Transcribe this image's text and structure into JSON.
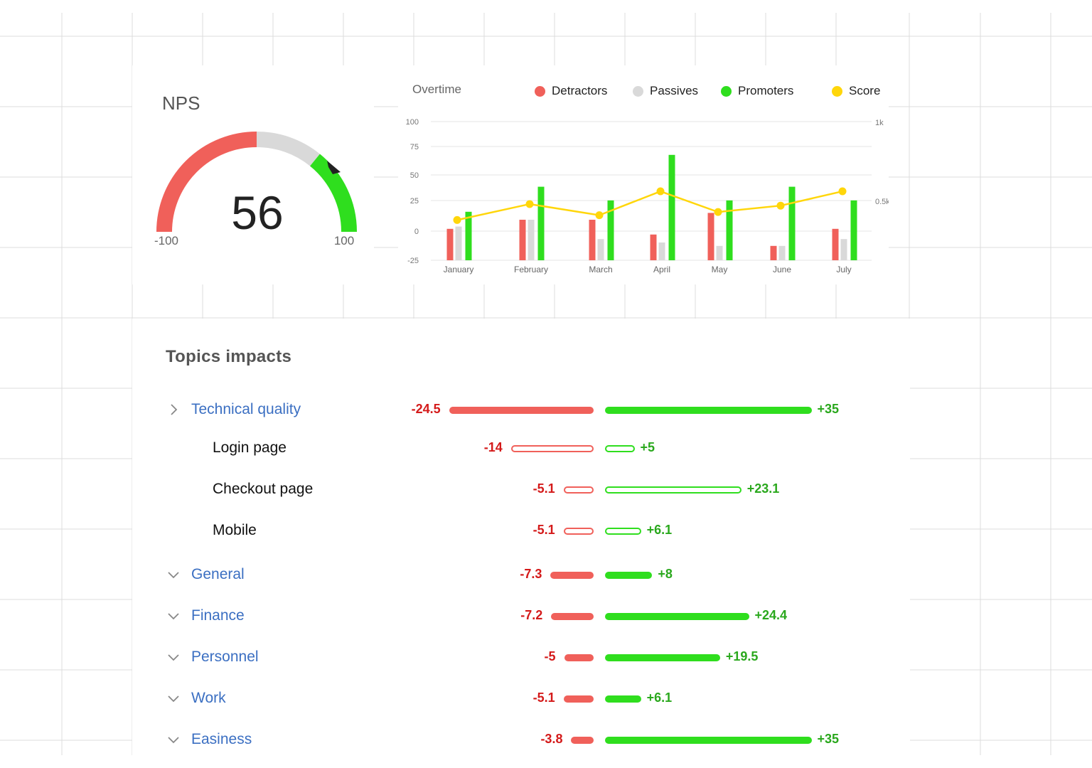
{
  "colors": {
    "detractors": "#f0605a",
    "passives": "#d9d9d9",
    "promoters": "#2fde1e",
    "score": "#ffd60a",
    "link_blue": "#3b6fc2",
    "negative_text": "#d41a1a",
    "positive_text": "#2aa81d"
  },
  "nps": {
    "title": "NPS",
    "score": "56",
    "min_label": "-100",
    "max_label": "100"
  },
  "overtime": {
    "title": "Overtime",
    "legend": [
      {
        "label": "Detractors",
        "color": "#f0605a"
      },
      {
        "label": "Passives",
        "color": "#d9d9d9"
      },
      {
        "label": "Promoters",
        "color": "#2fde1e"
      },
      {
        "label": "Score",
        "color": "#ffd60a"
      }
    ]
  },
  "chart_data": {
    "type": "bar",
    "categories": [
      "January",
      "February",
      "March",
      "April",
      "May",
      "June",
      "July"
    ],
    "y_ticks": [
      "100",
      "75",
      "50",
      "25",
      "0",
      "-25"
    ],
    "ylim": [
      -25,
      100
    ],
    "y2_ticks": [
      "1k",
      "0.5k"
    ],
    "y2lim": [
      0,
      1000
    ],
    "grid": true,
    "series": [
      {
        "name": "Detractors",
        "values": [
          2,
          10,
          10,
          -3,
          16,
          -13,
          2
        ]
      },
      {
        "name": "Passives",
        "values": [
          4,
          10,
          -7,
          -10,
          -13,
          -13,
          -7
        ]
      },
      {
        "name": "Promoters",
        "values": [
          17,
          39,
          27,
          67,
          27,
          39,
          27
        ]
      },
      {
        "name": "Score",
        "axis": "secondary",
        "values": [
          360,
          460,
          390,
          540,
          410,
          450,
          540
        ]
      }
    ]
  },
  "topics": {
    "title": "Topics impacts",
    "rows": [
      {
        "label": "Technical quality",
        "kind": "category",
        "expanded": true,
        "neg": "-24.5",
        "pos": "+35",
        "neg_value": -24.5,
        "pos_value": 35
      },
      {
        "label": "Login page",
        "kind": "sub",
        "neg": "-14",
        "pos": "+5",
        "neg_value": -14,
        "pos_value": 5
      },
      {
        "label": "Checkout page",
        "kind": "sub",
        "neg": "-5.1",
        "pos": "+23.1",
        "neg_value": -5.1,
        "pos_value": 23.1
      },
      {
        "label": "Mobile",
        "kind": "sub",
        "neg": "-5.1",
        "pos": "+6.1",
        "neg_value": -5.1,
        "pos_value": 6.1
      },
      {
        "label": "General",
        "kind": "category",
        "expanded": false,
        "neg": "-7.3",
        "pos": "+8",
        "neg_value": -7.3,
        "pos_value": 8
      },
      {
        "label": "Finance",
        "kind": "category",
        "expanded": false,
        "neg": "-7.2",
        "pos": "+24.4",
        "neg_value": -7.2,
        "pos_value": 24.4
      },
      {
        "label": "Personnel",
        "kind": "category",
        "expanded": false,
        "neg": "-5",
        "pos": "+19.5",
        "neg_value": -5,
        "pos_value": 19.5
      },
      {
        "label": "Work",
        "kind": "category",
        "expanded": false,
        "neg": "-5.1",
        "pos": "+6.1",
        "neg_value": -5.1,
        "pos_value": 6.1
      },
      {
        "label": "Easiness",
        "kind": "category",
        "expanded": false,
        "neg": "-3.8",
        "pos": "+35",
        "neg_value": -3.8,
        "pos_value": 35
      }
    ]
  }
}
